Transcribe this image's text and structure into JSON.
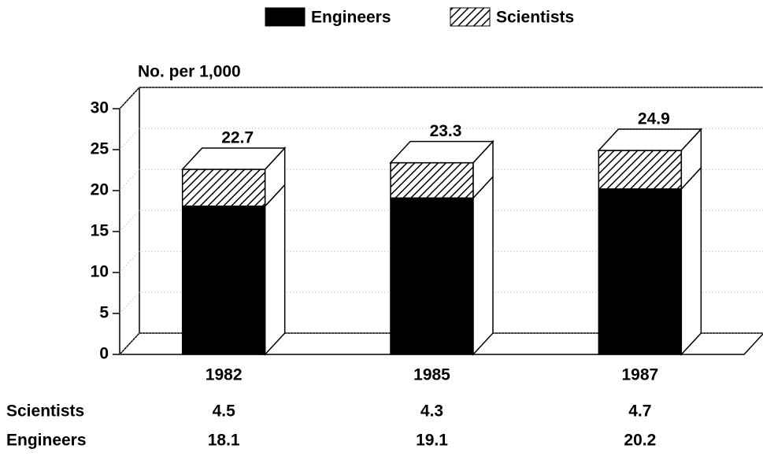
{
  "chart_data": {
    "type": "bar3d_stacked",
    "y_label": "No. per 1,000",
    "categories": [
      "1982",
      "1985",
      "1987"
    ],
    "series": [
      {
        "name": "Engineers",
        "color": "#000000",
        "pattern": "solid",
        "values": [
          18.1,
          19.1,
          20.2
        ]
      },
      {
        "name": "Scientists",
        "color": "#000000",
        "pattern": "hatch",
        "values": [
          4.5,
          4.3,
          4.7
        ]
      }
    ],
    "totals": [
      22.7,
      23.3,
      24.9
    ],
    "ylim": [
      0,
      30
    ],
    "yticks": [
      0,
      5,
      10,
      15,
      20,
      25,
      30
    ],
    "grid": true
  }
}
